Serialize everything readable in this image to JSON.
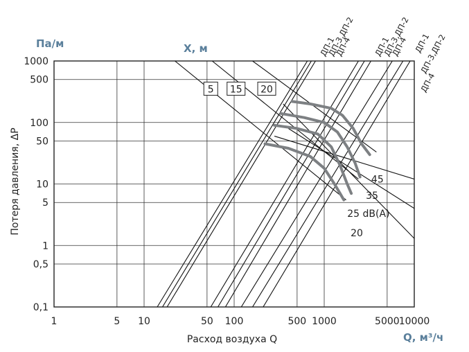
{
  "chart_data": {
    "type": "line",
    "x_scale": "log",
    "y_scale": "log",
    "xlim": [
      1,
      10000
    ],
    "ylim": [
      0.1,
      1000
    ],
    "xlabel": "Расход воздуха Q",
    "ylabel": "Потеря давления, ΔP",
    "x_unit": "Q, м³/ч",
    "y_unit": "Па/м",
    "x_ticks": [
      1,
      5,
      10,
      50,
      100,
      500,
      1000,
      5000,
      10000
    ],
    "x_tick_labels": [
      "1",
      "5",
      "10",
      "50",
      "100",
      "500",
      "1000",
      "5000",
      "10000"
    ],
    "y_ticks": [
      0.1,
      0.5,
      1,
      5,
      10,
      50,
      100,
      500,
      1000
    ],
    "y_tick_labels": [
      "0,1",
      "0,5",
      "1",
      "5",
      "10",
      "50",
      "100",
      "500",
      "1000"
    ],
    "grid": true,
    "throw_title": "X, м",
    "throw_boxes": [
      {
        "label": "5",
        "x": 55,
        "y": 350
      },
      {
        "label": "15",
        "x": 105,
        "y": 350
      },
      {
        "label": "20",
        "x": 230,
        "y": 350
      }
    ],
    "throw_lines": [
      {
        "label": "5",
        "points": [
          [
            22,
            1000
          ],
          [
            1750,
            5.5
          ]
        ]
      },
      {
        "label": "15",
        "points": [
          [
            57,
            1000
          ],
          [
            2400,
            12
          ]
        ]
      },
      {
        "label": "20",
        "points": [
          [
            160,
            1000
          ],
          [
            3800,
            33
          ]
        ]
      },
      {
        "label": "",
        "points": [
          [
            350,
            200
          ],
          [
            10000,
            1.3
          ]
        ]
      },
      {
        "label": "",
        "points": [
          [
            400,
            80
          ],
          [
            10000,
            4
          ]
        ]
      },
      {
        "label": "",
        "points": [
          [
            280,
            60
          ],
          [
            10000,
            12
          ]
        ]
      }
    ],
    "model_lines": [
      {
        "label": "ДП-1",
        "points": [
          [
            14,
            0.1
          ],
          [
            650,
            1000
          ]
        ]
      },
      {
        "label": "ДП-3,ДП-2",
        "points": [
          [
            16,
            0.1
          ],
          [
            720,
            1000
          ]
        ]
      },
      {
        "label": "ДП-4",
        "points": [
          [
            18,
            0.1
          ],
          [
            800,
            1000
          ]
        ]
      },
      {
        "label": "ДП-1",
        "points": [
          [
            55,
            0.1
          ],
          [
            2400,
            1000
          ]
        ]
      },
      {
        "label": "ДП-3,ДП-2",
        "points": [
          [
            66,
            0.1
          ],
          [
            2800,
            1000
          ]
        ]
      },
      {
        "label": "ДП-4",
        "points": [
          [
            80,
            0.1
          ],
          [
            3300,
            1000
          ]
        ]
      },
      {
        "label": "ДП-1",
        "points": [
          [
            120,
            0.1
          ],
          [
            5700,
            1000
          ]
        ]
      },
      {
        "label": "ДП-3,ДП-2",
        "points": [
          [
            160,
            0.1
          ],
          [
            7500,
            1000
          ]
        ]
      },
      {
        "label": "ДП-4",
        "points": [
          [
            210,
            0.1
          ],
          [
            9000,
            1000
          ]
        ]
      }
    ],
    "top_labels_left": [
      "ДП-1",
      "ДП-3,ДП-2",
      "ДП-4"
    ],
    "top_labels_mid": [
      "ДП-1",
      "ДП-3,ДП-2",
      "ДП-4"
    ],
    "top_labels_right": [
      "ДП-1",
      "ДП-3,ДП-2",
      "ДП-4"
    ],
    "noise_curves": [
      {
        "label": "45",
        "points": [
          [
            440,
            220
          ],
          [
            700,
            200
          ],
          [
            1200,
            170
          ],
          [
            1600,
            130
          ],
          [
            2100,
            80
          ],
          [
            2600,
            45
          ],
          [
            3200,
            30
          ]
        ]
      },
      {
        "label": "35",
        "points": [
          [
            330,
            140
          ],
          [
            600,
            120
          ],
          [
            1000,
            100
          ],
          [
            1400,
            70
          ],
          [
            1800,
            40
          ],
          [
            2200,
            22
          ],
          [
            2500,
            13
          ]
        ]
      },
      {
        "label": "25 dB(A)",
        "points": [
          [
            280,
            90
          ],
          [
            500,
            80
          ],
          [
            850,
            65
          ],
          [
            1200,
            40
          ],
          [
            1500,
            20
          ],
          [
            1800,
            10
          ],
          [
            2000,
            7
          ]
        ]
      },
      {
        "label": "20",
        "points": [
          [
            220,
            45
          ],
          [
            400,
            38
          ],
          [
            700,
            28
          ],
          [
            1000,
            18
          ],
          [
            1300,
            10
          ],
          [
            1500,
            7
          ],
          [
            1650,
            5.5
          ]
        ]
      }
    ],
    "noise_labels": [
      "45",
      "35",
      "25 dB(A)",
      "20"
    ]
  },
  "colors": {
    "axis": "#222222",
    "grid": "#333333",
    "line": "#111111",
    "noise": "#7d8083",
    "unit": "#5a7f9b"
  }
}
